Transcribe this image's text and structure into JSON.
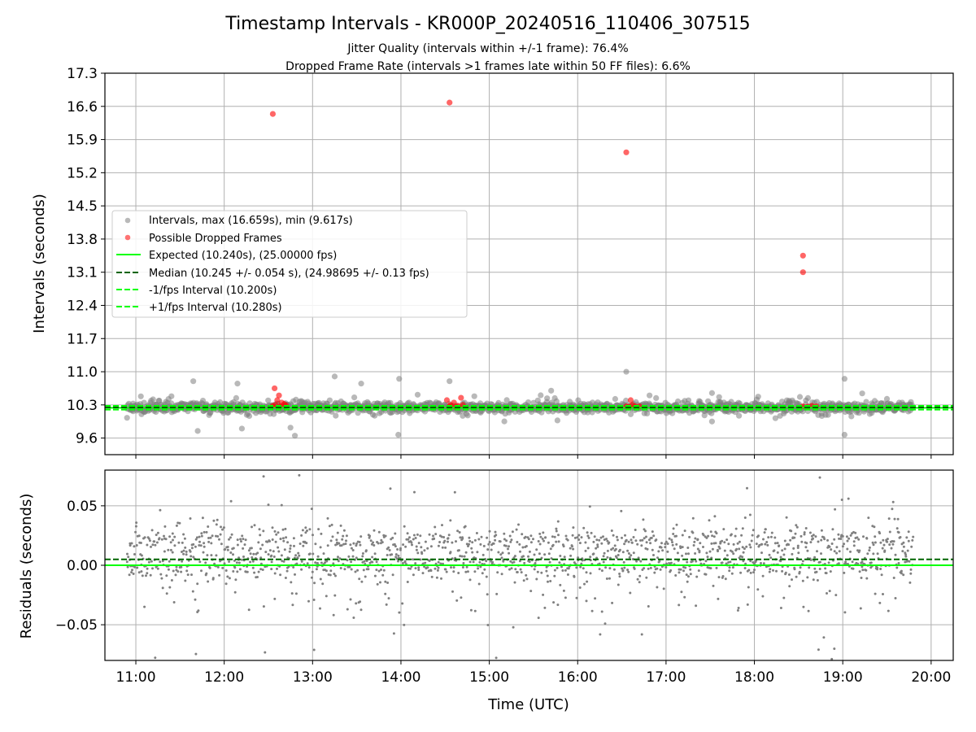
{
  "chart_data": [
    {
      "type": "scatter",
      "title": "Timestamp Intervals - KR000P_20240516_110406_307515",
      "subtitle_lines": [
        "Jitter Quality (intervals within +/-1 frame): 76.4%",
        "Dropped Frame Rate (intervals >1 frames late within 50 FF files): 6.6%"
      ],
      "xlabel": "",
      "ylabel": "Intervals (seconds)",
      "x_tick_labels": [
        "11:00",
        "12:00",
        "13:00",
        "14:00",
        "15:00",
        "16:00",
        "17:00",
        "18:00",
        "19:00",
        "20:00"
      ],
      "x_ticks_hours": [
        11,
        12,
        13,
        14,
        15,
        16,
        17,
        18,
        19,
        20
      ],
      "xlim_hours": [
        10.65,
        20.25
      ],
      "ylim": [
        9.25,
        17.3
      ],
      "y_ticks": [
        9.6,
        10.3,
        11.0,
        11.7,
        12.4,
        13.1,
        13.8,
        14.5,
        15.2,
        15.9,
        16.6,
        17.3
      ],
      "y_tick_labels": [
        "9.6",
        "10.3",
        "11.0",
        "11.7",
        "12.4",
        "13.1",
        "13.8",
        "14.5",
        "15.2",
        "15.9",
        "16.6",
        "17.3"
      ],
      "grid": true,
      "legend_position": "center-left",
      "series": [
        {
          "name": "Intervals, max (16.659s), min (9.617s)",
          "kind": "scatter",
          "color": "#808080",
          "stats": {
            "max": 16.659,
            "min": 9.617,
            "x_start": 10.9,
            "x_end": 19.8
          },
          "outliers": [
            {
              "x": 11.65,
              "y": 10.8
            },
            {
              "x": 11.7,
              "y": 9.75
            },
            {
              "x": 12.15,
              "y": 10.75
            },
            {
              "x": 12.75,
              "y": 9.82
            },
            {
              "x": 12.8,
              "y": 9.65
            },
            {
              "x": 13.25,
              "y": 10.9
            },
            {
              "x": 13.55,
              "y": 10.75
            },
            {
              "x": 13.98,
              "y": 10.85
            },
            {
              "x": 13.97,
              "y": 9.67
            },
            {
              "x": 14.55,
              "y": 10.8
            },
            {
              "x": 16.55,
              "y": 11.0
            },
            {
              "x": 17.52,
              "y": 10.55
            },
            {
              "x": 17.52,
              "y": 9.95
            },
            {
              "x": 19.02,
              "y": 10.85
            },
            {
              "x": 19.02,
              "y": 9.67
            },
            {
              "x": 12.2,
              "y": 9.8
            },
            {
              "x": 15.7,
              "y": 10.6
            }
          ]
        },
        {
          "name": "Possible Dropped Frames",
          "kind": "scatter",
          "color": "#ff0000",
          "points": [
            {
              "x": 12.55,
              "y": 16.44
            },
            {
              "x": 14.55,
              "y": 16.68
            },
            {
              "x": 16.55,
              "y": 15.63
            },
            {
              "x": 18.55,
              "y": 13.45
            },
            {
              "x": 18.55,
              "y": 13.1
            },
            {
              "x": 12.57,
              "y": 10.65
            },
            {
              "x": 12.62,
              "y": 10.5
            },
            {
              "x": 12.6,
              "y": 10.4
            },
            {
              "x": 12.65,
              "y": 10.35
            },
            {
              "x": 12.58,
              "y": 10.3
            },
            {
              "x": 12.63,
              "y": 10.27
            },
            {
              "x": 12.68,
              "y": 10.32
            },
            {
              "x": 12.55,
              "y": 10.28
            },
            {
              "x": 12.7,
              "y": 10.29
            },
            {
              "x": 14.52,
              "y": 10.4
            },
            {
              "x": 14.56,
              "y": 10.3
            },
            {
              "x": 14.6,
              "y": 10.35
            },
            {
              "x": 14.65,
              "y": 10.28
            },
            {
              "x": 14.68,
              "y": 10.45
            },
            {
              "x": 14.7,
              "y": 10.3
            },
            {
              "x": 14.55,
              "y": 10.27
            },
            {
              "x": 14.62,
              "y": 10.26
            },
            {
              "x": 16.55,
              "y": 10.27
            },
            {
              "x": 16.6,
              "y": 10.4
            },
            {
              "x": 16.62,
              "y": 10.3
            },
            {
              "x": 16.65,
              "y": 10.27
            },
            {
              "x": 16.7,
              "y": 10.27
            },
            {
              "x": 16.58,
              "y": 10.26
            },
            {
              "x": 18.55,
              "y": 10.27
            },
            {
              "x": 18.6,
              "y": 10.26
            },
            {
              "x": 18.65,
              "y": 10.28
            },
            {
              "x": 18.7,
              "y": 10.27
            }
          ]
        },
        {
          "name": "Expected (10.240s), (25.00000 fps)",
          "kind": "hline",
          "value": 10.24,
          "color": "#00ff00",
          "style": "solid"
        },
        {
          "name": "Median (10.245 +/- 0.054 s), (24.98695 +/- 0.13 fps)",
          "kind": "hline",
          "value": 10.245,
          "color": "#006400",
          "style": "dashed"
        },
        {
          "name": "-1/fps Interval (10.200s)",
          "kind": "hline",
          "value": 10.2,
          "color": "#00ff00",
          "style": "dashed"
        },
        {
          "name": "+1/fps Interval (10.280s)",
          "kind": "hline",
          "value": 10.28,
          "color": "#00ff00",
          "style": "dashed"
        }
      ]
    },
    {
      "type": "scatter",
      "xlabel": "Time (UTC)",
      "ylabel": "Residuals (seconds)",
      "x_tick_labels": [
        "11:00",
        "12:00",
        "13:00",
        "14:00",
        "15:00",
        "16:00",
        "17:00",
        "18:00",
        "19:00",
        "20:00"
      ],
      "x_ticks_hours": [
        11,
        12,
        13,
        14,
        15,
        16,
        17,
        18,
        19,
        20
      ],
      "xlim_hours": [
        10.65,
        20.25
      ],
      "ylim": [
        -0.08,
        0.08
      ],
      "y_ticks": [
        -0.05,
        0.0,
        0.05
      ],
      "y_tick_labels": [
        "−0.05",
        "0.00",
        "0.05"
      ],
      "grid": true,
      "series": [
        {
          "name": "",
          "kind": "scatter",
          "color": "#808080",
          "stats": {
            "x_start": 10.9,
            "x_end": 19.8,
            "count": 1600,
            "typical_range": [
              -0.03,
              0.035
            ],
            "outlier_range": [
              -0.08,
              0.08
            ]
          }
        },
        {
          "name": "",
          "kind": "hline",
          "value": 0.0,
          "color": "#00ff00",
          "style": "solid"
        },
        {
          "name": "",
          "kind": "hline",
          "value": 0.005,
          "color": "#006400",
          "style": "dashed"
        }
      ]
    }
  ]
}
